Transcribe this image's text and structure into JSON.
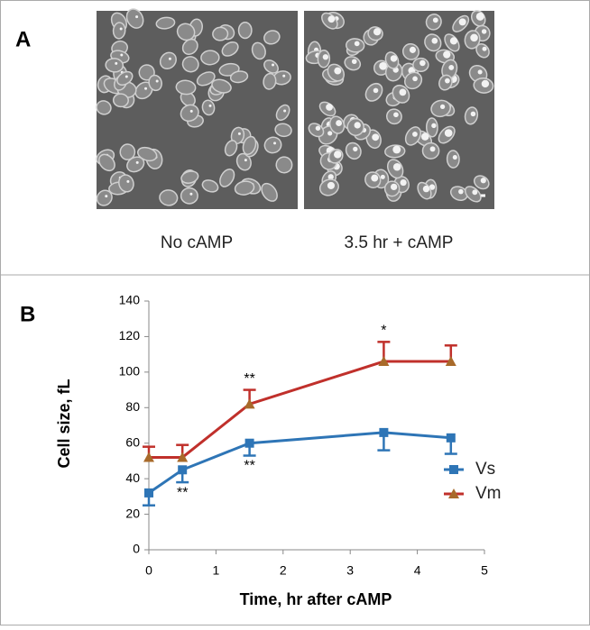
{
  "panel_a": {
    "label": "A",
    "captions": [
      "No cAMP",
      "3.5 hr + cAMP"
    ]
  },
  "chart_data": {
    "type": "line",
    "panel_label": "B",
    "x_label": "Time, hr after cAMP",
    "y_label": "Cell size, fL",
    "x": [
      0,
      0.5,
      1.5,
      3.5,
      4.5
    ],
    "series": [
      {
        "name": "Vs",
        "color": "#2e75b6",
        "marker": "square",
        "marker_color": "#2e75b6",
        "error_direction": "down",
        "values": [
          32,
          45,
          60,
          66,
          63
        ],
        "errors": [
          7,
          7,
          7,
          10,
          9
        ]
      },
      {
        "name": "Vm",
        "color": "#c0302b",
        "marker": "triangle",
        "marker_color": "#a86a2a",
        "error_direction": "up",
        "values": [
          52,
          52,
          82,
          106,
          106
        ],
        "errors": [
          6,
          7,
          8,
          11,
          9
        ]
      }
    ],
    "annotations": [
      "**",
      "**",
      "**",
      "*"
    ],
    "xlim": [
      0,
      5
    ],
    "xticks": [
      0,
      1,
      2,
      3,
      4,
      5
    ],
    "ylim": [
      0,
      140
    ],
    "yticks": [
      0,
      20,
      40,
      60,
      80,
      100,
      120,
      140
    ],
    "grid": false,
    "legend": "right"
  }
}
